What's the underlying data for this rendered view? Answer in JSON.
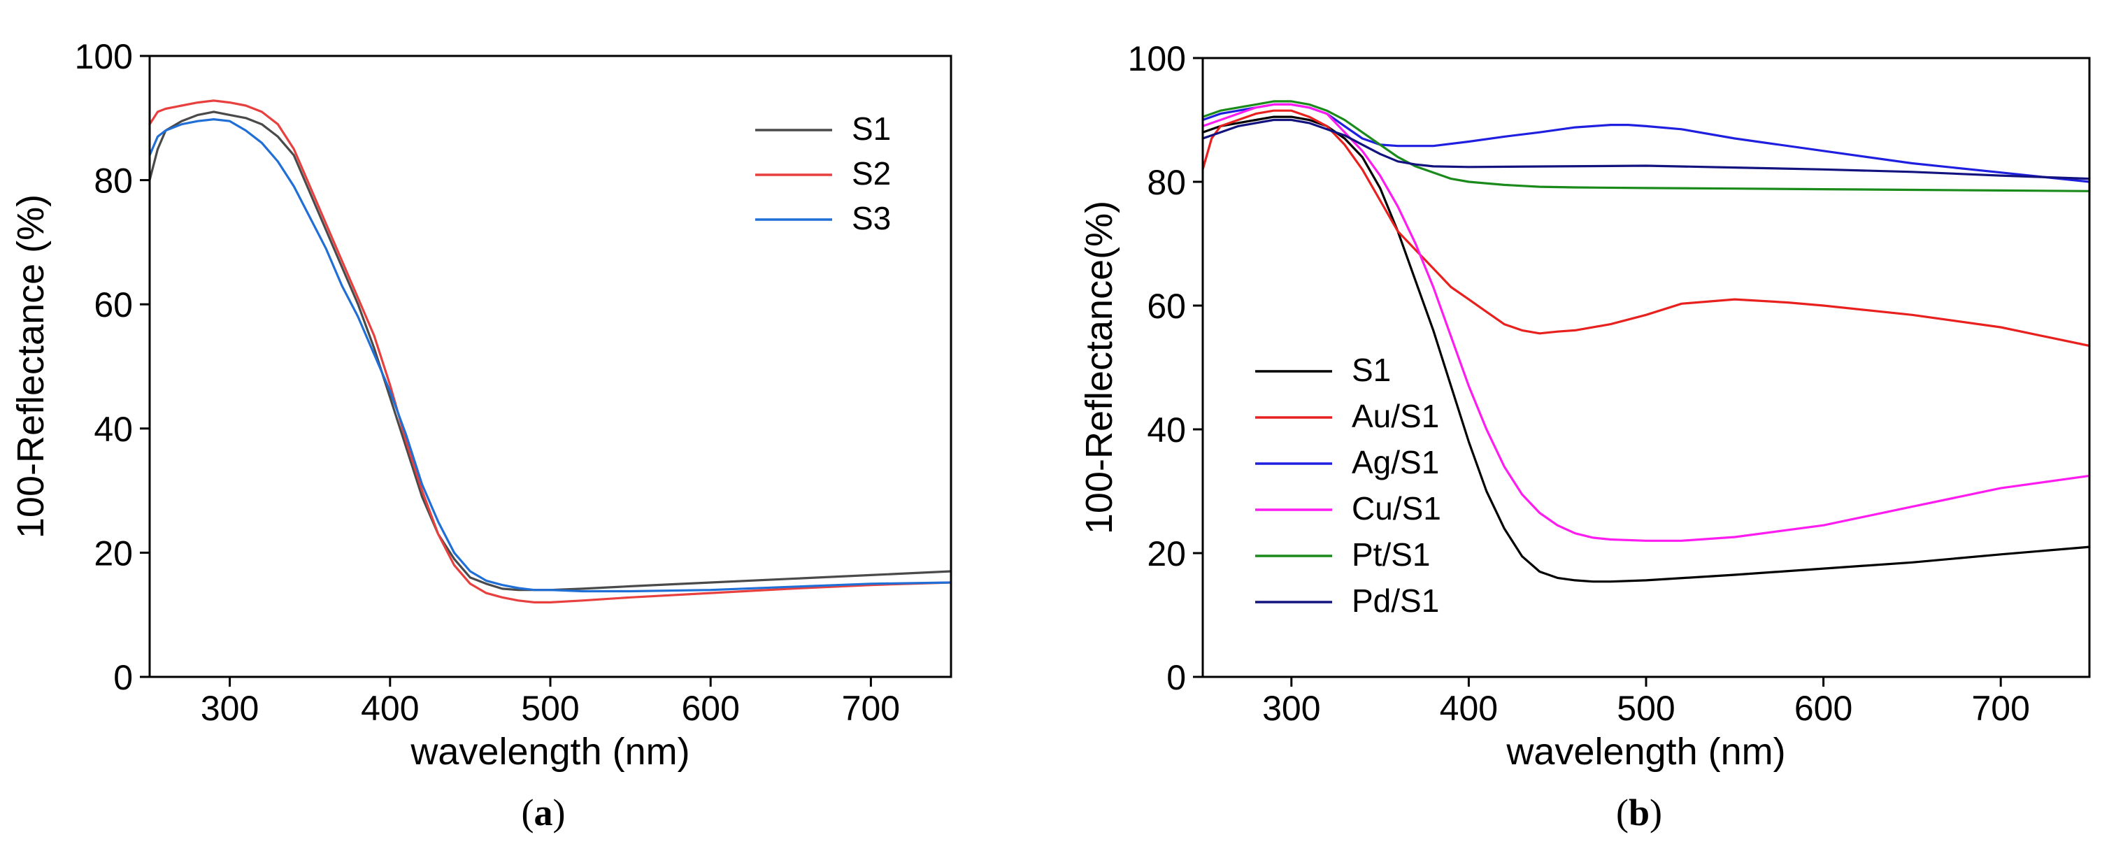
{
  "chart_data": [
    {
      "type": "line",
      "panel_label": "a",
      "xlabel": "wavelength (nm)",
      "ylabel": "100-Reflectance (%)",
      "xlim": [
        250,
        750
      ],
      "ylim": [
        0,
        100
      ],
      "xticks": [
        300,
        400,
        500,
        600,
        700
      ],
      "yticks": [
        0,
        20,
        40,
        60,
        80,
        100
      ],
      "legend": "top-right",
      "series": [
        {
          "name": "S1",
          "color": "#4a4a4a",
          "x": [
            250,
            255,
            260,
            270,
            280,
            290,
            300,
            310,
            320,
            330,
            340,
            350,
            360,
            370,
            380,
            390,
            400,
            410,
            420,
            430,
            440,
            450,
            460,
            470,
            480,
            490,
            500,
            520,
            550,
            600,
            650,
            700,
            750
          ],
          "y": [
            80,
            85,
            88,
            89.5,
            90.5,
            91,
            90.5,
            90,
            89,
            87,
            84,
            78,
            72,
            66,
            60,
            53,
            45,
            37,
            29,
            23,
            19,
            16,
            15,
            14.2,
            14,
            14,
            14,
            14.2,
            14.6,
            15.2,
            15.8,
            16.4,
            17
          ]
        },
        {
          "name": "S2",
          "color": "#e8403e",
          "x": [
            250,
            255,
            260,
            270,
            280,
            290,
            300,
            310,
            320,
            330,
            340,
            350,
            360,
            370,
            380,
            390,
            400,
            410,
            420,
            430,
            440,
            450,
            460,
            470,
            480,
            490,
            500,
            520,
            550,
            600,
            650,
            700,
            750
          ],
          "y": [
            89,
            91,
            91.5,
            92,
            92.5,
            92.8,
            92.5,
            92,
            91,
            89,
            85,
            79,
            73,
            67,
            61,
            55,
            47,
            38,
            30,
            23,
            18,
            15,
            13.5,
            12.8,
            12.3,
            12,
            12,
            12.3,
            12.8,
            13.5,
            14.2,
            14.8,
            15.2
          ]
        },
        {
          "name": "S3",
          "color": "#1f6fd6",
          "x": [
            250,
            255,
            260,
            270,
            280,
            290,
            300,
            310,
            320,
            330,
            340,
            350,
            360,
            370,
            380,
            390,
            400,
            410,
            420,
            430,
            440,
            450,
            460,
            470,
            480,
            490,
            500,
            520,
            550,
            600,
            650,
            700,
            750
          ],
          "y": [
            84,
            87,
            88,
            89,
            89.5,
            89.8,
            89.5,
            88,
            86,
            83,
            79,
            74,
            69,
            63,
            58,
            52,
            46,
            39,
            31,
            25,
            20,
            17,
            15.5,
            14.8,
            14.3,
            14,
            14,
            13.8,
            13.8,
            14,
            14.5,
            15,
            15.2
          ]
        }
      ]
    },
    {
      "type": "line",
      "panel_label": "b",
      "xlabel": "wavelength (nm)",
      "ylabel": "100-Reflectance(%)",
      "xlim": [
        250,
        750
      ],
      "ylim": [
        0,
        100
      ],
      "xticks": [
        300,
        400,
        500,
        600,
        700
      ],
      "yticks": [
        0,
        20,
        40,
        60,
        80,
        100
      ],
      "legend": "bottom-left",
      "series": [
        {
          "name": "S1",
          "color": "#000000",
          "x": [
            250,
            260,
            270,
            280,
            290,
            300,
            310,
            320,
            330,
            340,
            350,
            360,
            370,
            380,
            390,
            400,
            410,
            420,
            430,
            440,
            450,
            460,
            470,
            480,
            500,
            550,
            600,
            650,
            700,
            750
          ],
          "y": [
            88,
            89,
            89.5,
            90,
            90.5,
            90.5,
            90,
            89,
            87,
            84,
            79,
            72,
            64,
            56,
            47,
            38,
            30,
            24,
            19.5,
            17,
            16,
            15.6,
            15.4,
            15.4,
            15.6,
            16.5,
            17.5,
            18.5,
            19.8,
            21
          ]
        },
        {
          "name": "Au/S1",
          "color": "#e8201e",
          "x": [
            250,
            255,
            260,
            270,
            280,
            290,
            300,
            310,
            320,
            330,
            340,
            350,
            360,
            370,
            380,
            390,
            400,
            410,
            420,
            430,
            440,
            450,
            460,
            480,
            500,
            520,
            550,
            580,
            600,
            650,
            700,
            750
          ],
          "y": [
            82,
            87,
            89,
            90,
            91,
            91.5,
            91.5,
            90.5,
            89,
            86,
            82,
            77,
            72,
            69,
            66,
            63,
            61,
            59,
            57,
            56,
            55.5,
            55.8,
            56,
            57,
            58.5,
            60.3,
            61,
            60.5,
            60,
            58.5,
            56.5,
            53.5
          ]
        },
        {
          "name": "Ag/S1",
          "color": "#1f1fe0",
          "x": [
            250,
            260,
            270,
            280,
            290,
            300,
            310,
            320,
            330,
            340,
            350,
            360,
            380,
            400,
            420,
            440,
            460,
            480,
            490,
            500,
            520,
            550,
            600,
            650,
            700,
            750
          ],
          "y": [
            90,
            91,
            91.5,
            92,
            92.5,
            92.5,
            92,
            91,
            89,
            87,
            86,
            85.8,
            85.8,
            86.5,
            87.3,
            88,
            88.8,
            89.2,
            89.2,
            89,
            88.5,
            87,
            85,
            83,
            81.5,
            80
          ]
        },
        {
          "name": "Cu/S1",
          "color": "#ff1cf0",
          "x": [
            250,
            260,
            270,
            280,
            290,
            300,
            310,
            320,
            330,
            340,
            350,
            360,
            370,
            380,
            390,
            400,
            410,
            420,
            430,
            440,
            450,
            460,
            470,
            480,
            500,
            520,
            550,
            600,
            650,
            700,
            750
          ],
          "y": [
            89,
            90,
            91,
            92,
            92.5,
            92.5,
            92,
            91,
            88,
            85,
            81,
            76,
            70,
            63,
            55,
            47,
            40,
            34,
            29.5,
            26.5,
            24.5,
            23.2,
            22.5,
            22.2,
            22,
            22,
            22.6,
            24.5,
            27.5,
            30.5,
            32.5
          ]
        },
        {
          "name": "Pt/S1",
          "color": "#1a8a1a",
          "x": [
            250,
            260,
            270,
            280,
            290,
            300,
            310,
            320,
            330,
            340,
            350,
            360,
            370,
            380,
            390,
            400,
            420,
            440,
            460,
            500,
            550,
            600,
            650,
            700,
            750
          ],
          "y": [
            90.5,
            91.5,
            92,
            92.5,
            93,
            93,
            92.5,
            91.5,
            90,
            88,
            86,
            84,
            82.5,
            81.5,
            80.5,
            80,
            79.5,
            79.2,
            79.1,
            79,
            78.9,
            78.8,
            78.7,
            78.6,
            78.5
          ]
        },
        {
          "name": "Pd/S1",
          "color": "#131380",
          "x": [
            250,
            260,
            270,
            280,
            290,
            300,
            310,
            320,
            330,
            340,
            350,
            360,
            370,
            380,
            400,
            450,
            500,
            550,
            600,
            650,
            700,
            750
          ],
          "y": [
            87,
            88,
            89,
            89.5,
            90,
            90,
            89.5,
            88.5,
            87.5,
            86,
            84.5,
            83.3,
            82.8,
            82.5,
            82.4,
            82.5,
            82.6,
            82.3,
            82,
            81.6,
            81,
            80.5
          ]
        }
      ]
    }
  ]
}
